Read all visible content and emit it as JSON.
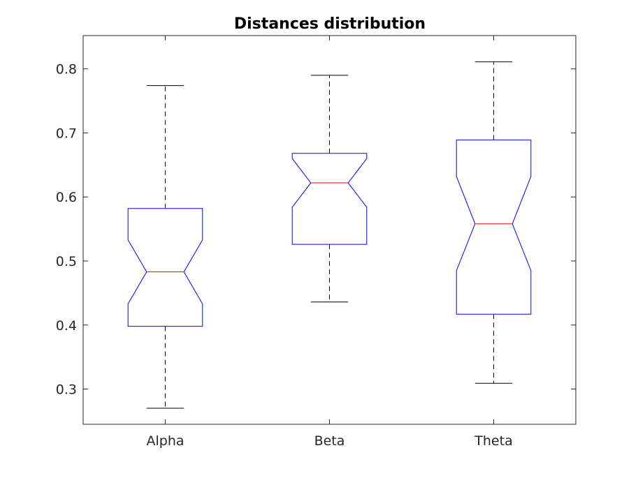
{
  "chart_data": {
    "type": "box",
    "title": "Distances distribution",
    "xlabel": "",
    "ylabel": "",
    "ylim": [
      0.245,
      0.852
    ],
    "yticks": [
      0.3,
      0.4,
      0.5,
      0.6,
      0.7,
      0.8
    ],
    "ytick_labels": [
      "0.3",
      "0.4",
      "0.5",
      "0.6",
      "0.7",
      "0.8"
    ],
    "categories": [
      "Alpha",
      "Beta",
      "Theta"
    ],
    "notched": true,
    "grid": false,
    "colors": {
      "box": "#0000ff",
      "median": "#ff0000",
      "whisker": "#000000",
      "axis": "#262626"
    },
    "boxes": [
      {
        "name": "Alpha",
        "whisker_low": 0.27,
        "q1": 0.398,
        "notch_low": 0.433,
        "median": 0.483,
        "notch_high": 0.533,
        "q3": 0.582,
        "whisker_high": 0.774
      },
      {
        "name": "Beta",
        "whisker_low": 0.436,
        "q1": 0.526,
        "notch_low": 0.584,
        "median": 0.622,
        "notch_high": 0.66,
        "q3": 0.668,
        "whisker_high": 0.79
      },
      {
        "name": "Theta",
        "whisker_low": 0.309,
        "q1": 0.417,
        "notch_low": 0.485,
        "median": 0.558,
        "notch_high": 0.632,
        "q3": 0.689,
        "whisker_high": 0.811
      }
    ]
  }
}
